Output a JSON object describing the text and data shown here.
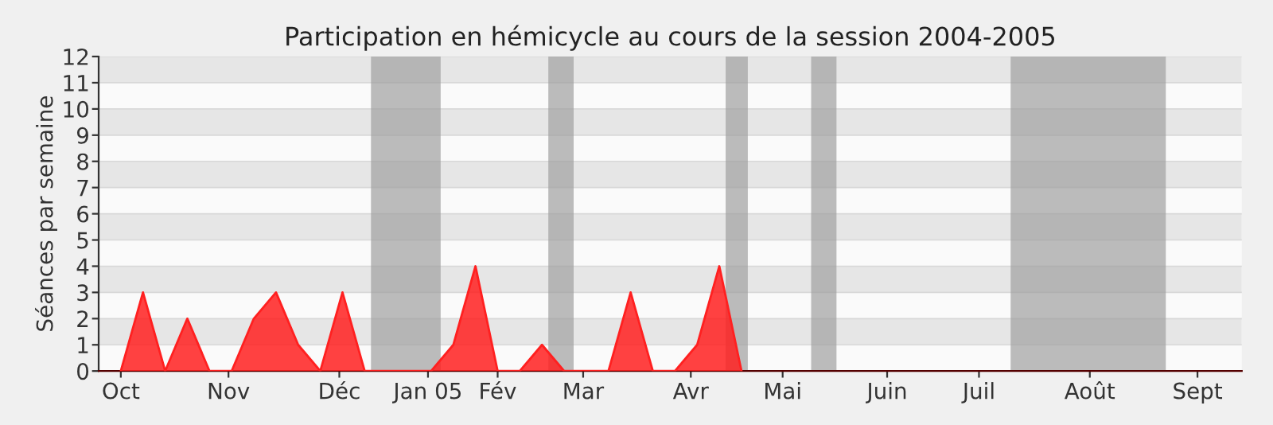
{
  "chart_data": {
    "type": "area",
    "title": "Participation en hémicycle au cours de la session 2004-2005",
    "ylabel": "Séances par semaine",
    "x": [
      "2004-10-07",
      "2004-10-14",
      "2004-10-21",
      "2004-10-28",
      "2004-11-04",
      "2004-11-11",
      "2004-11-18",
      "2004-11-25",
      "2004-12-02",
      "2004-12-09",
      "2004-12-16",
      "2004-12-23",
      "2004-12-30",
      "2005-01-06",
      "2005-01-13",
      "2005-01-20",
      "2005-01-27",
      "2005-02-03",
      "2005-02-10",
      "2005-02-17",
      "2005-02-24",
      "2005-03-03",
      "2005-03-10",
      "2005-03-17",
      "2005-03-24",
      "2005-03-31",
      "2005-04-07",
      "2005-04-14",
      "2005-04-21"
    ],
    "series": [
      {
        "color": "#ff2020",
        "values": [
          0,
          3,
          0,
          2,
          0,
          0,
          2,
          3,
          1,
          0,
          3,
          0,
          0,
          0,
          0,
          1,
          4,
          0,
          0,
          1,
          0,
          0,
          0,
          3,
          0,
          0,
          1,
          4,
          0
        ]
      }
    ],
    "xlim": [
      "2004-09-30",
      "2005-09-26"
    ],
    "xticks": [
      {
        "value": "2004-10-07",
        "label": "Oct"
      },
      {
        "value": "2004-11-10",
        "label": "Nov"
      },
      {
        "value": "2004-12-15",
        "label": "Déc"
      },
      {
        "value": "2005-01-12",
        "label": "Jan 05"
      },
      {
        "value": "2005-02-03",
        "label": "Fév"
      },
      {
        "value": "2005-03-02",
        "label": "Mar"
      },
      {
        "value": "2005-04-05",
        "label": "Avr"
      },
      {
        "value": "2005-05-04",
        "label": "Mai"
      },
      {
        "value": "2005-06-06",
        "label": "Juin"
      },
      {
        "value": "2005-07-05",
        "label": "Juil"
      },
      {
        "value": "2005-08-09",
        "label": "Août"
      },
      {
        "value": "2005-09-12",
        "label": "Sept"
      }
    ],
    "ylim": [
      0,
      12
    ],
    "yticks": [
      0,
      1,
      2,
      3,
      4,
      5,
      6,
      7,
      8,
      9,
      10,
      11,
      12
    ],
    "bands": [
      {
        "axis": "x",
        "from": "2004-12-25",
        "to": "2005-01-16",
        "color": "#a0a0a0"
      },
      {
        "axis": "x",
        "from": "2005-02-19",
        "to": "2005-02-27",
        "color": "#a0a0a0"
      },
      {
        "axis": "x",
        "from": "2005-04-16",
        "to": "2005-04-23",
        "color": "#a0a0a0"
      },
      {
        "axis": "x",
        "from": "2005-05-13",
        "to": "2005-05-21",
        "color": "#a0a0a0"
      },
      {
        "axis": "x",
        "from": "2005-07-15",
        "to": "2005-09-02",
        "color": "#a0a0a0"
      }
    ],
    "grid": "y"
  }
}
